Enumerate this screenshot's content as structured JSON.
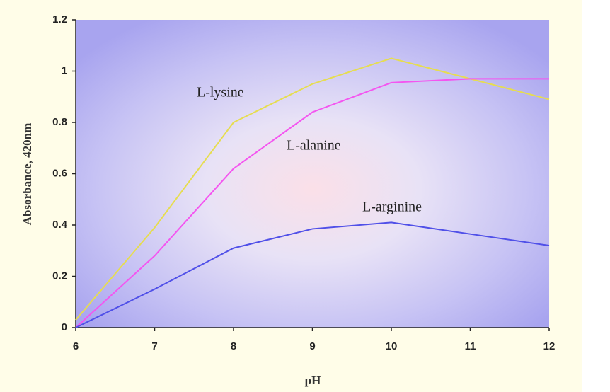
{
  "chart_data": {
    "type": "line",
    "x_label": "pH",
    "y_label": "Absorbance, 420nm",
    "x": [
      6,
      7,
      8,
      9,
      10,
      11,
      12
    ],
    "series": [
      {
        "name": "L-lysine",
        "color": "#e6dd50",
        "values": [
          0.03,
          0.39,
          0.8,
          0.95,
          1.05,
          0.97,
          0.89
        ]
      },
      {
        "name": "L-alanine",
        "color": "#f455f0",
        "values": [
          0,
          0.28,
          0.62,
          0.84,
          0.955,
          0.97,
          0.97
        ]
      },
      {
        "name": "L-arginine",
        "color": "#5050e8",
        "values": [
          0,
          0.15,
          0.31,
          0.385,
          0.41,
          0.365,
          0.32
        ]
      }
    ],
    "xlim": [
      6,
      12
    ],
    "xticks": [
      6,
      7,
      8,
      9,
      10,
      11,
      12
    ],
    "ylim": [
      0,
      1.2
    ],
    "yticks": [
      0,
      0.2,
      0.4,
      0.6,
      0.8,
      1,
      1.2
    ]
  }
}
